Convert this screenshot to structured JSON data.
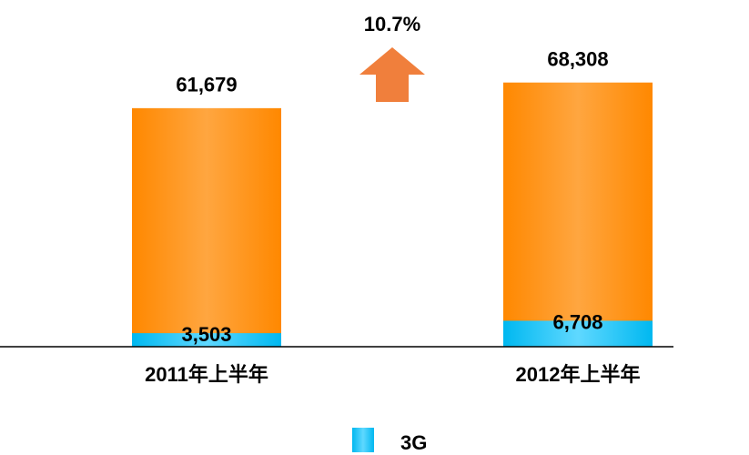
{
  "chart_data": {
    "type": "bar",
    "categories": [
      "2011年上半年",
      "2012年上半年"
    ],
    "totals": {
      "values": [
        61679,
        68308
      ],
      "value_labels": [
        "61,679",
        "68,308"
      ],
      "color": "#ff8c00"
    },
    "series": [
      {
        "name": "3G",
        "color": "#19c3f5",
        "values": [
          3503,
          6708
        ],
        "value_labels": [
          "3,503",
          "6,708"
        ]
      }
    ],
    "annotation": "10.7%",
    "ylim": [
      0,
      80000
    ]
  }
}
